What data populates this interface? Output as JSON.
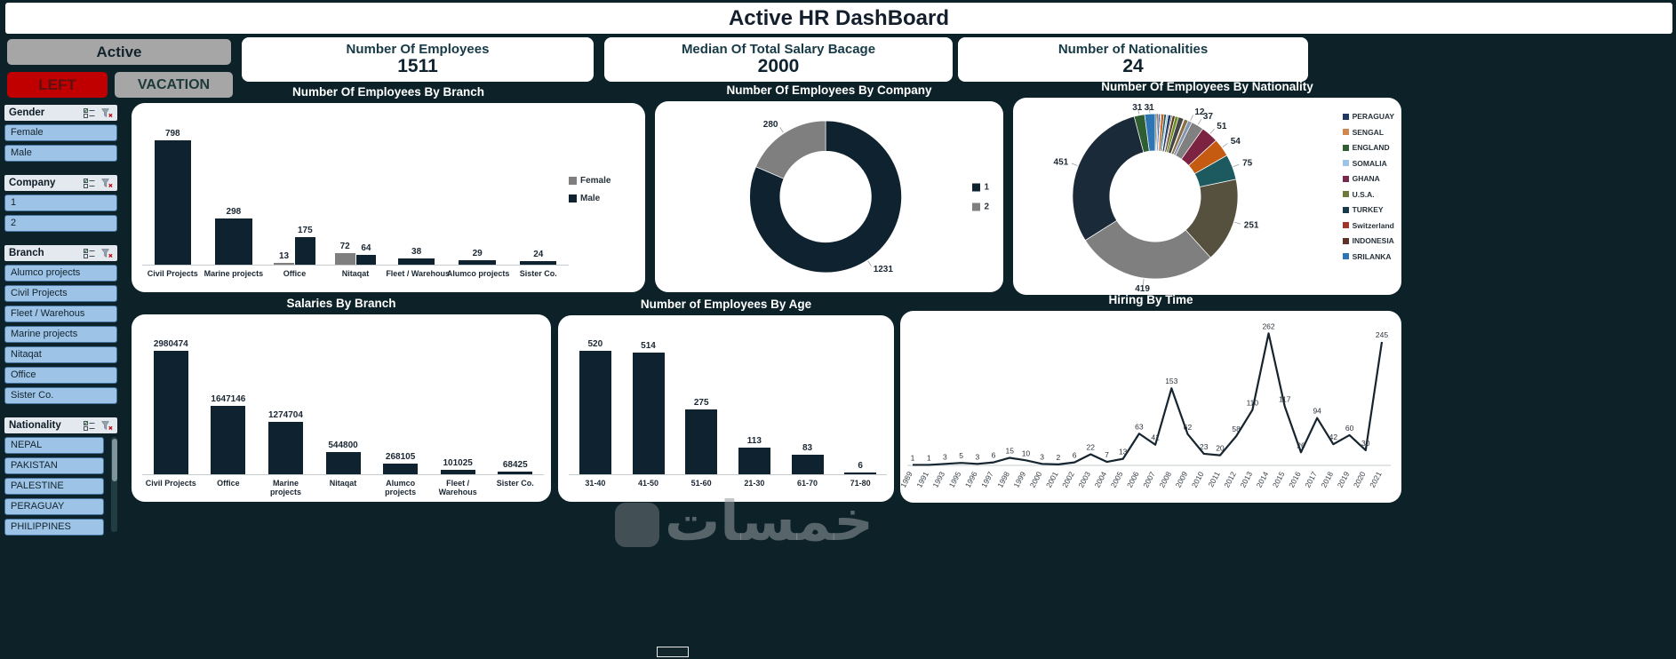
{
  "title": "Active HR DashBoard",
  "filter_buttons": [
    {
      "label": "Active"
    },
    {
      "label": "LEFT"
    },
    {
      "label": "VACATION"
    }
  ],
  "kpis": [
    {
      "label": "Number Of Employees",
      "value": "1511"
    },
    {
      "label": "Median Of Total Salary Bacage",
      "value": "2000"
    },
    {
      "label": "Number of Nationalities",
      "value": "24"
    }
  ],
  "slicers": [
    {
      "title": "Gender",
      "items": [
        "Female",
        "Male"
      ],
      "scrollbar": false
    },
    {
      "title": "Company",
      "items": [
        "1",
        "2"
      ],
      "scrollbar": false
    },
    {
      "title": "Branch",
      "items": [
        "Alumco projects",
        "Civil Projects",
        "Fleet / Warehous",
        "Marine projects",
        "Nitaqat",
        "Office",
        "Sister Co."
      ],
      "scrollbar": false
    },
    {
      "title": "Nationality",
      "items": [
        "NEPAL",
        "PAKISTAN",
        "PALESTINE",
        "PERAGUAY",
        "PHILIPPINES"
      ],
      "scrollbar": true
    }
  ],
  "watermark": "خمسات",
  "chart_data": [
    {
      "type": "bar",
      "title": "Number Of Employees By Branch",
      "categories": [
        "Civil Projects",
        "Marine projects",
        "Office",
        "Nitaqat",
        "Fleet / Warehous",
        "Alumco projects",
        "Sister Co."
      ],
      "series": [
        {
          "name": "Female",
          "color": "#7f7f7f",
          "values": [
            null,
            null,
            13,
            72,
            null,
            null,
            null
          ]
        },
        {
          "name": "Male",
          "color": "#0f2230",
          "values": [
            798,
            298,
            175,
            64,
            38,
            29,
            24
          ]
        }
      ],
      "ylim": [
        0,
        900
      ],
      "legend_position": "right",
      "cat_nowrap": true,
      "grid": false
    },
    {
      "type": "donut",
      "title": "Number Of Employees By Company",
      "slices": [
        {
          "name": "1",
          "value": 1231,
          "label": "1231",
          "color": "#0f2230"
        },
        {
          "name": "2",
          "value": 280,
          "label": "280",
          "color": "#7f7f7f"
        }
      ],
      "legend": [
        {
          "label": "1",
          "color": "#0f2230"
        },
        {
          "label": "2",
          "color": "#7f7f7f"
        }
      ],
      "legend_position": "right",
      "center_x_frac": 0.49,
      "inner_frac": 0.6,
      "r_margin": 22
    },
    {
      "type": "donut",
      "title": "Number Of Employees By Nationality",
      "slices": [
        {
          "value": 5,
          "color": "#2f5e33"
        },
        {
          "value": 4,
          "color": "#a3342a"
        },
        {
          "value": 6,
          "color": "#2e75b6"
        },
        {
          "value": 3,
          "color": "#77294d"
        },
        {
          "value": 8,
          "color": "#c55a11"
        },
        {
          "value": 7,
          "color": "#1c5a60"
        },
        {
          "value": 5,
          "color": "#9dc3e6"
        },
        {
          "value": 9,
          "color": "#203864"
        },
        {
          "value": 4,
          "color": "#70783a"
        },
        {
          "value": 8,
          "color": "#5c3327"
        },
        {
          "value": 10,
          "color": "#6b8e23"
        },
        {
          "value": 16,
          "color": "#444444"
        },
        {
          "value": 2,
          "color": "#d1884f"
        },
        {
          "value": 12,
          "color": "#8b6f47"
        },
        {
          "value": 12,
          "label": "12",
          "color": "#8497b0"
        },
        {
          "value": 37,
          "label": "37",
          "color": "#808080"
        },
        {
          "value": 51,
          "label": "51",
          "color": "#7c2342"
        },
        {
          "value": 54,
          "label": "54",
          "color": "#c55a11"
        },
        {
          "value": 75,
          "label": "75",
          "color": "#1c5a60"
        },
        {
          "value": 251,
          "label": "251",
          "color": "#56503f"
        },
        {
          "value": 419,
          "label": "419",
          "color": "#7f7f7f"
        },
        {
          "value": 451,
          "label": "451",
          "color": "#1a2a38"
        },
        {
          "value": 31,
          "label": "31",
          "color": "#2f5e33"
        },
        {
          "value": 31,
          "label": "31",
          "color": "#2e75b6"
        }
      ],
      "legend": [
        {
          "label": "PERAGUAY",
          "color": "#203864"
        },
        {
          "label": "SENGAL",
          "color": "#d1884f"
        },
        {
          "label": "ENGLAND",
          "color": "#2f5e33"
        },
        {
          "label": "SOMALIA",
          "color": "#9dc3e6"
        },
        {
          "label": "GHANA",
          "color": "#77294d"
        },
        {
          "label": "U.S.A.",
          "color": "#70783a"
        },
        {
          "label": "TURKEY",
          "color": "#173b4d"
        },
        {
          "label": "Switzerland",
          "color": "#a3342a"
        },
        {
          "label": "INDONESIA",
          "color": "#5c3327"
        },
        {
          "label": "SRILANKA",
          "color": "#2e75b6"
        }
      ],
      "legend_position": "right",
      "center_x_frac": 0.366,
      "inner_frac": 0.55,
      "r_margin": 18
    },
    {
      "type": "bar",
      "title": "Salaries By Branch",
      "categories": [
        "Civil Projects",
        "Office",
        "Marine projects",
        "Nitaqat",
        "Alumco projects",
        "Fleet / Warehous",
        "Sister Co."
      ],
      "values": [
        2980474,
        1647146,
        1274704,
        544800,
        268105,
        101025,
        68425
      ],
      "bar_color": "#0f2230",
      "ylim": [
        0,
        3350000
      ],
      "grid": false
    },
    {
      "type": "bar",
      "title": "Number of Employees By Age",
      "categories": [
        "31-40",
        "41-50",
        "51-60",
        "21-30",
        "61-70",
        "71-80"
      ],
      "values": [
        520,
        514,
        275,
        113,
        83,
        6
      ],
      "bar_color": "#0f2230",
      "ylim": [
        0,
        580
      ],
      "cat_nowrap": true,
      "grid": false
    },
    {
      "type": "line",
      "title": "Hiring By Time",
      "x": [
        "1989",
        "1991",
        "1993",
        "1995",
        "1996",
        "1997",
        "1998",
        "1999",
        "2000",
        "2001",
        "2002",
        "2003",
        "2004",
        "2005",
        "2006",
        "2007",
        "2008",
        "2009",
        "2010",
        "2011",
        "2012",
        "2013",
        "2014",
        "2015",
        "2016",
        "2017",
        "2018",
        "2019",
        "2020",
        "2021"
      ],
      "values": [
        1,
        1,
        3,
        5,
        3,
        6,
        15,
        10,
        3,
        2,
        6,
        22,
        7,
        13,
        63,
        41,
        153,
        62,
        23,
        20,
        58,
        110,
        262,
        117,
        26,
        94,
        42,
        60,
        30,
        245
      ],
      "line_color": "#15242e",
      "ylim": [
        0,
        275
      ],
      "grid": false
    }
  ]
}
